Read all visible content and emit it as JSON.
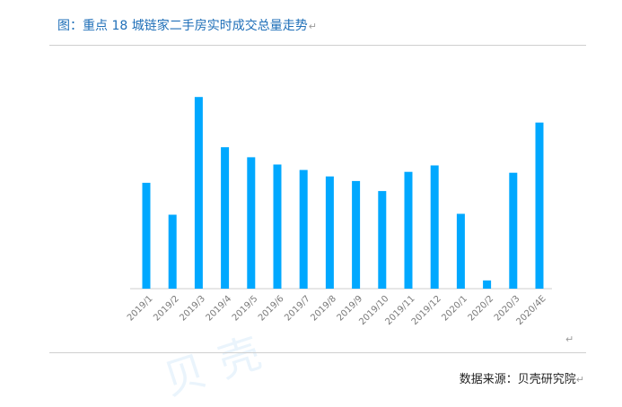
{
  "title": "图：重点 18 城链家二手房实时成交总量走势",
  "para_mark": "↵",
  "source": "数据来源：贝壳研究院",
  "watermark": "贝壳",
  "colors": {
    "bar": "#00a8ff",
    "title": "#1f6fb8",
    "axis": "#cfcfcf",
    "tick": "#7a7a7a"
  },
  "chart_data": {
    "type": "bar",
    "title": "图：重点 18 城链家二手房实时成交总量走势",
    "categories": [
      "2019/1",
      "2019/2",
      "2019/3",
      "2019/4",
      "2019/5",
      "2019/6",
      "2019/7",
      "2019/8",
      "2019/9",
      "2019/10",
      "2019/11",
      "2019/12",
      "2020/1",
      "2020/2",
      "2020/3",
      "2020/4E"
    ],
    "values": [
      116,
      81,
      210,
      155,
      144,
      136,
      130,
      123,
      118,
      107,
      128,
      135,
      82,
      9,
      127,
      182
    ],
    "ylim": [
      0,
      220
    ],
    "grid": false,
    "legend": "none"
  }
}
